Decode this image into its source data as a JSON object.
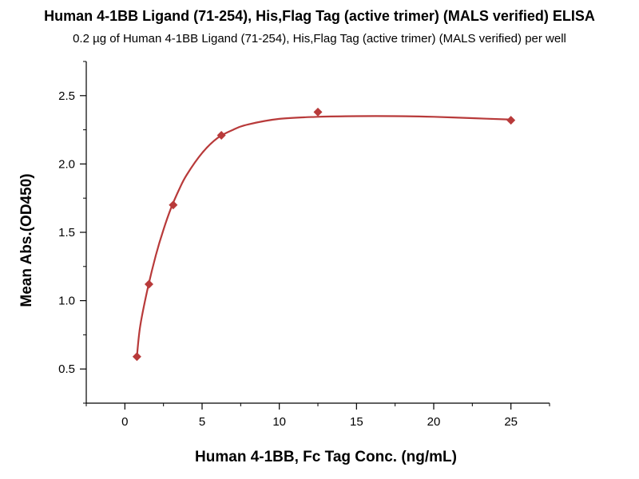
{
  "chart_data": {
    "type": "scatter",
    "title": "Human 4-1BB Ligand (71-254), His,Flag Tag (active trimer) (MALS verified) ELISA",
    "subtitle": "0.2 µg of Human 4-1BB Ligand (71-254), His,Flag Tag (active trimer) (MALS verified) per well",
    "xlabel": "Human 4-1BB, Fc Tag Conc. (ng/mL)",
    "ylabel": "Mean Abs.(OD450)",
    "xlim": [
      -2.5,
      27.5
    ],
    "ylim": [
      0.25,
      2.75
    ],
    "xticks": [
      0,
      5,
      10,
      15,
      20,
      25
    ],
    "yticks": [
      0.5,
      1.0,
      1.5,
      2.0,
      2.5
    ],
    "xtick_labels": [
      "0",
      "5",
      "10",
      "15",
      "20",
      "25"
    ],
    "ytick_labels": [
      "0.5",
      "1.0",
      "1.5",
      "2.0",
      "2.5"
    ],
    "grid": false,
    "series": [
      {
        "marker": "diamond",
        "color": "#b83a3a",
        "points": [
          {
            "x": 0.78,
            "y": 0.59
          },
          {
            "x": 1.56,
            "y": 1.12
          },
          {
            "x": 3.13,
            "y": 1.7
          },
          {
            "x": 6.25,
            "y": 2.21
          },
          {
            "x": 12.5,
            "y": 2.38
          },
          {
            "x": 25.0,
            "y": 2.32
          }
        ],
        "fit_curve": {
          "color": "#b83a3a",
          "points": [
            {
              "x": 0.78,
              "y": 0.59
            },
            {
              "x": 1.0,
              "y": 0.82
            },
            {
              "x": 1.5,
              "y": 1.1
            },
            {
              "x": 2.0,
              "y": 1.33
            },
            {
              "x": 2.5,
              "y": 1.52
            },
            {
              "x": 3.0,
              "y": 1.68
            },
            {
              "x": 3.5,
              "y": 1.81
            },
            {
              "x": 4.0,
              "y": 1.92
            },
            {
              "x": 5.0,
              "y": 2.08
            },
            {
              "x": 6.0,
              "y": 2.19
            },
            {
              "x": 7.0,
              "y": 2.25
            },
            {
              "x": 8.0,
              "y": 2.29
            },
            {
              "x": 10.0,
              "y": 2.33
            },
            {
              "x": 12.5,
              "y": 2.345
            },
            {
              "x": 15.0,
              "y": 2.35
            },
            {
              "x": 17.5,
              "y": 2.35
            },
            {
              "x": 20.0,
              "y": 2.345
            },
            {
              "x": 22.5,
              "y": 2.335
            },
            {
              "x": 25.0,
              "y": 2.325
            }
          ]
        }
      }
    ]
  }
}
